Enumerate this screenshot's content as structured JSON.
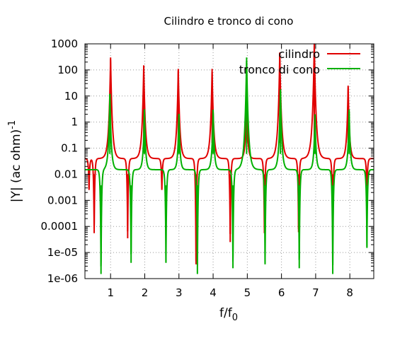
{
  "chart_data": {
    "type": "line",
    "title": "Cilindro e tronco di cono",
    "xlabel": {
      "base": "f/f",
      "sub": "0"
    },
    "ylabel": {
      "base": "|Y| (ac ohm)",
      "sup": "-1"
    },
    "xlim": [
      0.25,
      8.7
    ],
    "ylim": [
      1e-06,
      1000
    ],
    "yscale": "log",
    "grid": true,
    "legend_position": "top-right",
    "xticks": [
      1,
      2,
      3,
      4,
      5,
      6,
      7,
      8
    ],
    "xtick_labels": [
      "1",
      "2",
      "3",
      "4",
      "5",
      "6",
      "7",
      "8"
    ],
    "yticks": [
      1e-06,
      1e-05,
      0.0001,
      0.001,
      0.01,
      0.1,
      1,
      10,
      100,
      1000
    ],
    "ytick_labels": [
      "1e-06",
      "1e-05",
      "0.0001",
      "0.001",
      "0.01",
      "0.1",
      "1",
      "10",
      "100",
      "1000"
    ],
    "series": [
      {
        "name": "cilindro",
        "color": "#e00000",
        "baseline": 0.04,
        "peaks": [
          {
            "x": 1.0,
            "y": 300
          },
          {
            "x": 1.97,
            "y": 150
          },
          {
            "x": 2.98,
            "y": 110
          },
          {
            "x": 3.97,
            "y": 110
          },
          {
            "x": 4.98,
            "y": 8
          },
          {
            "x": 5.95,
            "y": 450
          },
          {
            "x": 6.96,
            "y": 1000
          },
          {
            "x": 7.95,
            "y": 25
          }
        ],
        "dips": [
          {
            "x": 0.37,
            "y": 0.0025
          },
          {
            "x": 0.52,
            "y": 5.5e-05
          },
          {
            "x": 1.5,
            "y": 3.5e-05
          },
          {
            "x": 2.5,
            "y": 0.0025
          },
          {
            "x": 3.5,
            "y": 3.5e-06
          },
          {
            "x": 4.5,
            "y": 2.5e-05
          },
          {
            "x": 5.5,
            "y": 5.5e-05
          },
          {
            "x": 6.5,
            "y": 6e-05
          },
          {
            "x": 7.5,
            "y": 4.5e-05
          },
          {
            "x": 8.5,
            "y": 0.0015
          }
        ]
      },
      {
        "name": "tronco di cono",
        "color": "#00b000",
        "baseline": 0.015,
        "peaks": [
          {
            "x": 0.98,
            "y": 12
          },
          {
            "x": 1.99,
            "y": 3
          },
          {
            "x": 3.0,
            "y": 2
          },
          {
            "x": 4.0,
            "y": 3
          },
          {
            "x": 4.98,
            "y": 300
          },
          {
            "x": 5.97,
            "y": 18
          },
          {
            "x": 6.98,
            "y": 2
          },
          {
            "x": 7.98,
            "y": 3
          }
        ],
        "dips": [
          {
            "x": 0.72,
            "y": 1.5e-06
          },
          {
            "x": 1.6,
            "y": 4e-06
          },
          {
            "x": 2.62,
            "y": 4e-06
          },
          {
            "x": 3.54,
            "y": 1.5e-06
          },
          {
            "x": 4.58,
            "y": 2.5e-06
          },
          {
            "x": 5.52,
            "y": 3.5e-06
          },
          {
            "x": 6.52,
            "y": 2.5e-06
          },
          {
            "x": 7.5,
            "y": 1.5e-06
          },
          {
            "x": 8.5,
            "y": 1.5e-05
          }
        ]
      }
    ]
  }
}
